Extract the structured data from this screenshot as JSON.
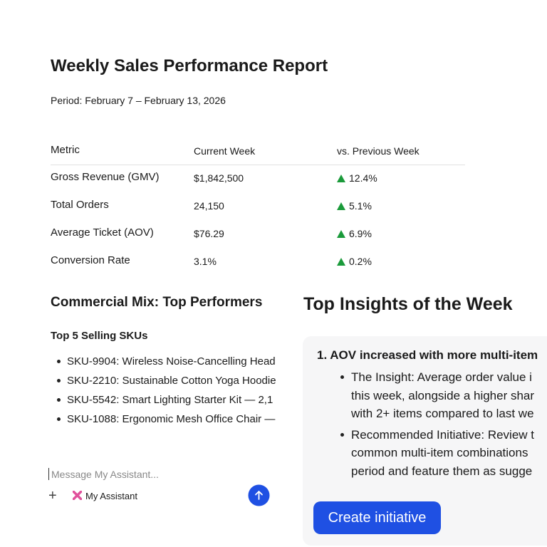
{
  "report": {
    "title": "Weekly Sales Performance Report",
    "period": "Period: February 7 – February 13, 2026",
    "table": {
      "header": [
        "Metric",
        "Current Week",
        "vs. Previous Week"
      ],
      "rows": [
        [
          "Gross Revenue (GMV)",
          "$1,842,500",
          "12.4%"
        ],
        [
          "Total Orders",
          "24,150",
          "5.1%"
        ],
        [
          "Average Ticket (AOV)",
          "$76.29",
          "6.9%"
        ],
        [
          "Conversion Rate",
          "3.1%",
          "0.2%"
        ]
      ]
    },
    "mix": {
      "heading": "Commercial Mix: Top Performers",
      "subheading": "Top 5 Selling SKUs",
      "items": [
        "SKU-9904: Wireless Noise-Cancelling Head",
        "SKU-2210: Sustainable Cotton Yoga Hoodie",
        "SKU-5542: Smart Lighting Starter Kit — 2,1",
        "SKU-1088: Ergonomic Mesh Office Chair —"
      ]
    }
  },
  "insights": {
    "heading": "Top Insights of the Week",
    "item_title": "1. AOV increased with more multi-item",
    "bullets": [
      [
        "The Insight: Average order value i",
        "this week, alongside a higher shar",
        "with 2+ items compared to last we"
      ],
      [
        "Recommended Initiative: Review t",
        "common multi-item combinations",
        "period and feature them as sugge"
      ]
    ],
    "button": "Create initiative"
  },
  "chat": {
    "placeholder": "Message My Assistant...",
    "assistant": "My Assistant"
  }
}
